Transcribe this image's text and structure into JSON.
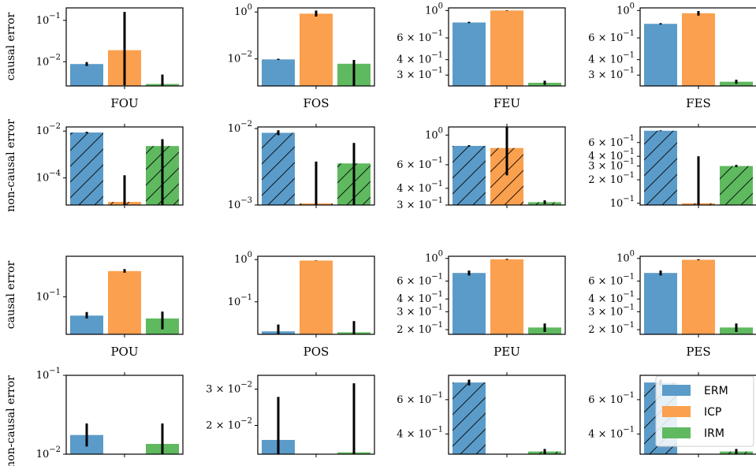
{
  "colors": {
    "ERM": "#5b9bc9",
    "ICP": "#fba04e",
    "IRM": "#5fb95f",
    "errbar": "#000000"
  },
  "legend": {
    "placement": "right, over bottom-right panel",
    "entries": [
      "ERM",
      "ICP",
      "IRM"
    ]
  },
  "row_labels": [
    "causal error",
    "non-causal error",
    "causal error",
    "non-causal error"
  ],
  "chart_data": [
    {
      "type": "bar",
      "row": 0,
      "col": 0,
      "title": "FOU",
      "yscale": "log",
      "ylim": [
        0.0026,
        0.2
      ],
      "ticks": [
        {
          "v": 0.1,
          "label": "10^-1"
        },
        {
          "v": 0.01,
          "label": "10^-2"
        }
      ],
      "hatch": false,
      "series": [
        {
          "name": "ERM",
          "value": 0.0088,
          "err": [
            0.0079,
            0.0098
          ]
        },
        {
          "name": "ICP",
          "value": 0.019,
          "err": [
            0.0027,
            0.16
          ]
        },
        {
          "name": "IRM",
          "value": 0.0029,
          "err": [
            0.0026,
            0.0049
          ]
        }
      ]
    },
    {
      "type": "bar",
      "row": 0,
      "col": 1,
      "title": "FOS",
      "yscale": "log",
      "ylim": [
        0.0007,
        1.5
      ],
      "ticks": [
        {
          "v": 1,
          "label": "10^0"
        },
        {
          "v": 0.01,
          "label": "10^-2"
        }
      ],
      "hatch": false,
      "series": [
        {
          "name": "ERM",
          "value": 0.0095,
          "err": [
            0.009,
            0.0101
          ]
        },
        {
          "name": "ICP",
          "value": 0.85,
          "err": [
            0.64,
            1.15
          ]
        },
        {
          "name": "IRM",
          "value": 0.0062,
          "err": [
            0.0007,
            0.009
          ]
        }
      ]
    },
    {
      "type": "bar",
      "row": 0,
      "col": 2,
      "title": "FEU",
      "yscale": "log",
      "ylim": [
        0.245,
        1.05
      ],
      "ticks": [
        {
          "v": 1,
          "label": "10^0"
        },
        {
          "v": 0.6,
          "label": "6 × 10^-1"
        },
        {
          "v": 0.4,
          "label": "4 × 10^-1"
        },
        {
          "v": 0.3,
          "label": "3 × 10^-1"
        }
      ],
      "hatch": false,
      "series": [
        {
          "name": "ERM",
          "value": 0.8,
          "err": [
            0.79,
            0.81
          ]
        },
        {
          "name": "ICP",
          "value": 1.0,
          "err": [
            0.995,
            1.005
          ]
        },
        {
          "name": "IRM",
          "value": 0.26,
          "err": [
            0.25,
            0.27
          ]
        }
      ]
    },
    {
      "type": "bar",
      "row": 0,
      "col": 3,
      "title": "FES",
      "yscale": "log",
      "ylim": [
        0.245,
        1.05
      ],
      "ticks": [
        {
          "v": 1,
          "label": "10^0"
        },
        {
          "v": 0.6,
          "label": "6 × 10^-1"
        },
        {
          "v": 0.4,
          "label": "4 × 10^-1"
        },
        {
          "v": 0.3,
          "label": "3 × 10^-1"
        }
      ],
      "hatch": false,
      "series": [
        {
          "name": "ERM",
          "value": 0.78,
          "err": [
            0.77,
            0.79
          ]
        },
        {
          "name": "ICP",
          "value": 0.95,
          "err": [
            0.91,
            0.99
          ]
        },
        {
          "name": "IRM",
          "value": 0.265,
          "err": [
            0.255,
            0.275
          ]
        }
      ]
    },
    {
      "type": "bar",
      "row": 1,
      "col": 0,
      "title": "",
      "yscale": "log",
      "ylim": [
        7e-06,
        0.015
      ],
      "ticks": [
        {
          "v": 0.01,
          "label": "10^-2"
        },
        {
          "v": 0.0001,
          "label": "10^-4"
        }
      ],
      "hatch": true,
      "series": [
        {
          "name": "ERM",
          "value": 0.0087,
          "err": [
            0.0082,
            0.0093
          ]
        },
        {
          "name": "ICP",
          "value": 9.5e-06,
          "err": [
            7e-06,
            0.00013
          ]
        },
        {
          "name": "IRM",
          "value": 0.0023,
          "err": [
            7e-06,
            0.0045
          ]
        }
      ]
    },
    {
      "type": "bar",
      "row": 1,
      "col": 1,
      "title": "",
      "yscale": "log",
      "ylim": [
        0.001,
        0.0105
      ],
      "ticks": [
        {
          "v": 0.01,
          "label": "10^-2"
        },
        {
          "v": 0.001,
          "label": "10^-3"
        }
      ],
      "hatch": true,
      "series": [
        {
          "name": "ERM",
          "value": 0.0088,
          "err": [
            0.0082,
            0.0095
          ]
        },
        {
          "name": "ICP",
          "value": 0.00105,
          "err": [
            0.001,
            0.0037
          ]
        },
        {
          "name": "IRM",
          "value": 0.0035,
          "err": [
            0.001,
            0.0065
          ]
        }
      ]
    },
    {
      "type": "bar",
      "row": 1,
      "col": 2,
      "title": "",
      "yscale": "log",
      "ylim": [
        0.3,
        1.15
      ],
      "ticks": [
        {
          "v": 1,
          "label": "10^0"
        },
        {
          "v": 0.6,
          "label": "6 × 10^-1"
        },
        {
          "v": 0.4,
          "label": "4 × 10^-1"
        },
        {
          "v": 0.3,
          "label": "3 × 10^-1"
        }
      ],
      "hatch": true,
      "series": [
        {
          "name": "ERM",
          "value": 0.83,
          "err": [
            0.82,
            0.84
          ]
        },
        {
          "name": "ICP",
          "value": 0.8,
          "err": [
            0.5,
            1.15
          ]
        },
        {
          "name": "IRM",
          "value": 0.315,
          "err": [
            0.305,
            0.325
          ]
        }
      ]
    },
    {
      "type": "bar",
      "row": 1,
      "col": 3,
      "title": "",
      "yscale": "log",
      "ylim": [
        0.095,
        0.95
      ],
      "ticks": [
        {
          "v": 0.6,
          "label": "6 × 10^-1"
        },
        {
          "v": 0.4,
          "label": "4 × 10^-1"
        },
        {
          "v": 0.3,
          "label": "3 × 10^-1"
        },
        {
          "v": 0.2,
          "label": "2 × 10^-1"
        },
        {
          "v": 0.1,
          "label": "10^-1"
        }
      ],
      "hatch": true,
      "series": [
        {
          "name": "ERM",
          "value": 0.85,
          "err": [
            0.84,
            0.86
          ]
        },
        {
          "name": "ICP",
          "value": 0.1,
          "err": [
            0.095,
            0.4
          ]
        },
        {
          "name": "IRM",
          "value": 0.3,
          "err": [
            0.29,
            0.31
          ]
        }
      ]
    },
    {
      "type": "bar",
      "row": 2,
      "col": 0,
      "title": "POU",
      "yscale": "log",
      "ylim": [
        0.025,
        0.45
      ],
      "ticks": [
        {
          "v": 0.1,
          "label": "10^-1"
        }
      ],
      "hatch": false,
      "series": [
        {
          "name": "ERM",
          "value": 0.05,
          "err": [
            0.045,
            0.057
          ]
        },
        {
          "name": "ICP",
          "value": 0.26,
          "err": [
            0.245,
            0.28
          ]
        },
        {
          "name": "IRM",
          "value": 0.045,
          "err": [
            0.03,
            0.058
          ]
        }
      ]
    },
    {
      "type": "bar",
      "row": 2,
      "col": 1,
      "title": "POS",
      "yscale": "log",
      "ylim": [
        0.017,
        1.2
      ],
      "ticks": [
        {
          "v": 1,
          "label": "10^0"
        },
        {
          "v": 0.1,
          "label": "10^-1"
        }
      ],
      "hatch": false,
      "series": [
        {
          "name": "ERM",
          "value": 0.02,
          "err": [
            0.017,
            0.029
          ]
        },
        {
          "name": "ICP",
          "value": 0.95,
          "err": [
            0.94,
            0.96
          ]
        },
        {
          "name": "IRM",
          "value": 0.019,
          "err": [
            0.017,
            0.035
          ]
        }
      ]
    },
    {
      "type": "bar",
      "row": 2,
      "col": 2,
      "title": "PEU",
      "yscale": "log",
      "ylim": [
        0.18,
        1.05
      ],
      "ticks": [
        {
          "v": 1,
          "label": "10^0"
        },
        {
          "v": 0.6,
          "label": "6 × 10^-1"
        },
        {
          "v": 0.4,
          "label": "4 × 10^-1"
        },
        {
          "v": 0.3,
          "label": "3 × 10^-1"
        },
        {
          "v": 0.2,
          "label": "2 × 10^-1"
        }
      ],
      "hatch": false,
      "series": [
        {
          "name": "ERM",
          "value": 0.72,
          "err": [
            0.68,
            0.76
          ]
        },
        {
          "name": "ICP",
          "value": 0.98,
          "err": [
            0.97,
            0.99
          ]
        },
        {
          "name": "IRM",
          "value": 0.21,
          "err": [
            0.19,
            0.23
          ]
        }
      ]
    },
    {
      "type": "bar",
      "row": 2,
      "col": 3,
      "title": "PES",
      "yscale": "log",
      "ylim": [
        0.18,
        1.05
      ],
      "ticks": [
        {
          "v": 1,
          "label": "10^0"
        },
        {
          "v": 0.6,
          "label": "6 × 10^-1"
        },
        {
          "v": 0.4,
          "label": "4 × 10^-1"
        },
        {
          "v": 0.3,
          "label": "3 × 10^-1"
        },
        {
          "v": 0.2,
          "label": "2 × 10^-1"
        }
      ],
      "hatch": false,
      "series": [
        {
          "name": "ERM",
          "value": 0.72,
          "err": [
            0.68,
            0.76
          ]
        },
        {
          "name": "ICP",
          "value": 0.97,
          "err": [
            0.96,
            0.98
          ]
        },
        {
          "name": "IRM",
          "value": 0.21,
          "err": [
            0.19,
            0.23
          ]
        }
      ]
    },
    {
      "type": "bar",
      "row": 3,
      "col": 0,
      "title": "",
      "yscale": "log",
      "ylim": [
        0.01,
        0.1
      ],
      "ticks": [
        {
          "v": 0.1,
          "label": "10^-1"
        },
        {
          "v": 0.01,
          "label": "10^-2"
        }
      ],
      "hatch": false,
      "series": [
        {
          "name": "ERM",
          "value": 0.0175,
          "err": [
            0.0125,
            0.0245
          ]
        },
        {
          "name": "ICP",
          "value": 0.0098,
          "err": [
            0.0098,
            0.0099
          ]
        },
        {
          "name": "IRM",
          "value": 0.0135,
          "err": [
            0.0095,
            0.0245
          ]
        }
      ]
    },
    {
      "type": "bar",
      "row": 3,
      "col": 1,
      "title": "",
      "yscale": "log",
      "ylim": [
        0.0145,
        0.035
      ],
      "ticks": [
        {
          "v": 0.03,
          "label": "3 × 10^-2"
        },
        {
          "v": 0.02,
          "label": "2 × 10^-2"
        }
      ],
      "hatch": false,
      "series": [
        {
          "name": "ERM",
          "value": 0.017,
          "err": [
            0.0145,
            0.0275
          ]
        },
        {
          "name": "ICP",
          "value": 0.0142,
          "err": [
            0.0142,
            0.0143
          ]
        },
        {
          "name": "IRM",
          "value": 0.0148,
          "err": [
            0.0145,
            0.032
          ]
        }
      ]
    },
    {
      "type": "bar",
      "row": 3,
      "col": 2,
      "title": "",
      "yscale": "log",
      "ylim": [
        0.315,
        0.8
      ],
      "ticks": [
        {
          "v": 0.6,
          "label": "6 × 10^-1"
        },
        {
          "v": 0.4,
          "label": "4 × 10^-1"
        }
      ],
      "hatch": true,
      "series": [
        {
          "name": "ERM",
          "value": 0.735,
          "err": [
            0.71,
            0.76
          ]
        },
        {
          "name": "ICP",
          "value": 0.3,
          "err": [
            0.3,
            0.301
          ]
        },
        {
          "name": "IRM",
          "value": 0.325,
          "err": [
            0.315,
            0.335
          ]
        }
      ]
    },
    {
      "type": "bar",
      "row": 3,
      "col": 3,
      "title": "",
      "yscale": "log",
      "ylim": [
        0.315,
        0.8
      ],
      "ticks": [
        {
          "v": 0.6,
          "label": "6 × 10^-1"
        },
        {
          "v": 0.4,
          "label": "4 × 10^-1"
        }
      ],
      "hatch": true,
      "series": [
        {
          "name": "ERM",
          "value": 0.735,
          "err": [
            0.71,
            0.76
          ]
        },
        {
          "name": "ICP",
          "value": 0.3,
          "err": [
            0.3,
            0.301
          ]
        },
        {
          "name": "IRM",
          "value": 0.325,
          "err": [
            0.315,
            0.335
          ]
        }
      ]
    }
  ]
}
